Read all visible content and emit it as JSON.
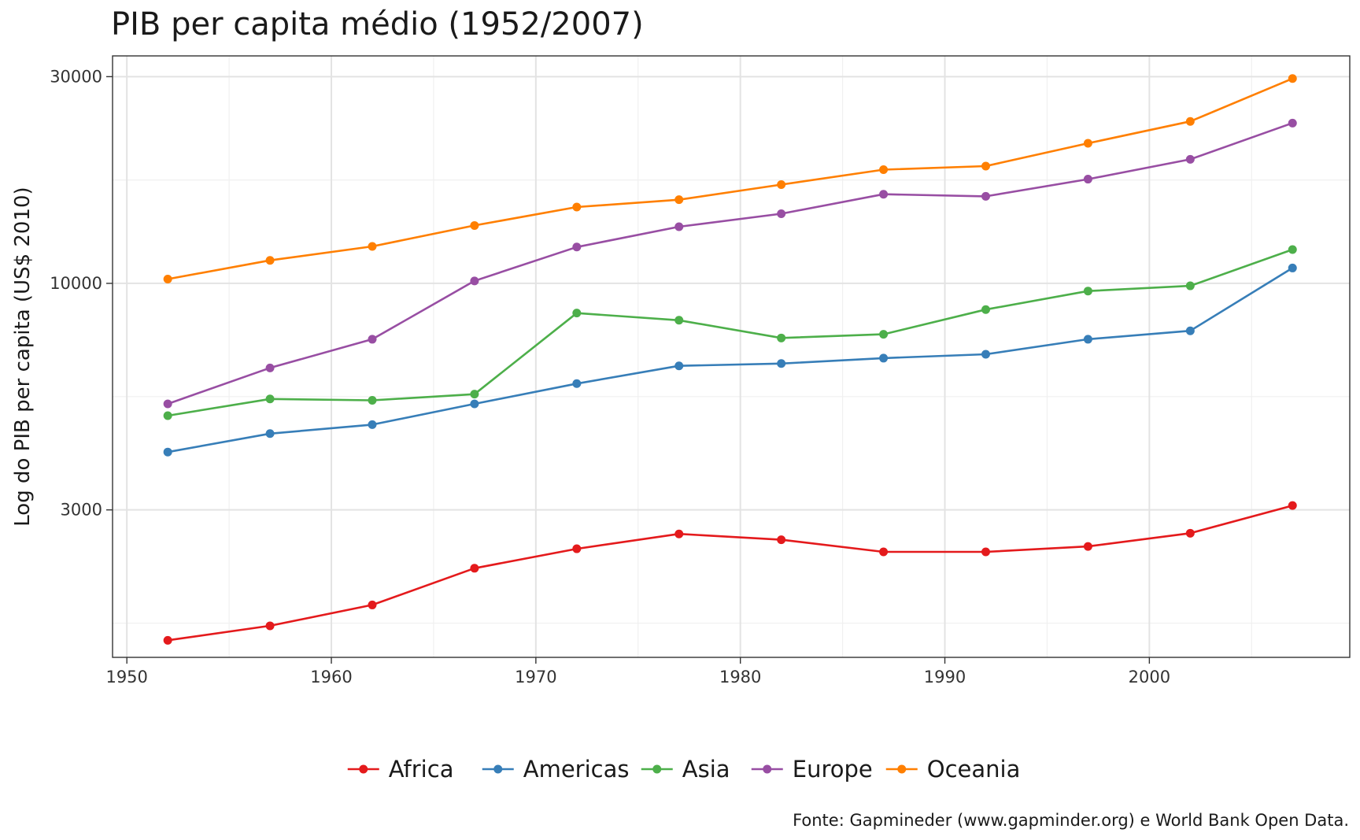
{
  "chart_data": {
    "type": "line",
    "title": "PIB per capita médio (1952/2007)",
    "subtitle": "",
    "xlabel": "",
    "ylabel": "Log do PIB per capita (US$ 2010)",
    "caption": "Fonte: Gapmineder (www.gapminder.org) e World Bank Open Data.",
    "y_scale": "log",
    "xlim": [
      1949.3,
      2009.8
    ],
    "ylim": [
      1370,
      33500
    ],
    "x_ticks": [
      1950,
      1960,
      1970,
      1980,
      1990,
      2000
    ],
    "x_tick_labels": [
      "1950",
      "1960",
      "1970",
      "1980",
      "1990",
      "2000"
    ],
    "y_ticks": [
      3000,
      10000,
      30000
    ],
    "y_tick_labels": [
      "3000",
      "10000",
      "30000"
    ],
    "grid": true,
    "legend_position": "bottom",
    "x": [
      1952,
      1957,
      1962,
      1967,
      1972,
      1977,
      1982,
      1987,
      1992,
      1997,
      2002,
      2007
    ],
    "series": [
      {
        "name": "Africa",
        "color": "#e41a1c",
        "values": [
          1500,
          1620,
          1810,
          2200,
          2440,
          2640,
          2560,
          2400,
          2400,
          2470,
          2650,
          3070
        ]
      },
      {
        "name": "Americas",
        "color": "#377eb8",
        "values": [
          4080,
          4500,
          4720,
          5270,
          5870,
          6450,
          6530,
          6720,
          6860,
          7430,
          7770,
          10850
        ]
      },
      {
        "name": "Asia",
        "color": "#4daf4a",
        "values": [
          4950,
          5410,
          5370,
          5550,
          8540,
          8220,
          7480,
          7630,
          8700,
          9600,
          9870,
          11970
        ]
      },
      {
        "name": "Europe",
        "color": "#984ea3",
        "values": [
          5270,
          6380,
          7430,
          10130,
          12130,
          13510,
          14480,
          16060,
          15880,
          17400,
          19330,
          23440
        ]
      },
      {
        "name": "Oceania",
        "color": "#ff7f00",
        "values": [
          10230,
          11300,
          12170,
          13600,
          15000,
          15600,
          16900,
          18300,
          18650,
          21050,
          23650,
          29700
        ]
      }
    ]
  }
}
